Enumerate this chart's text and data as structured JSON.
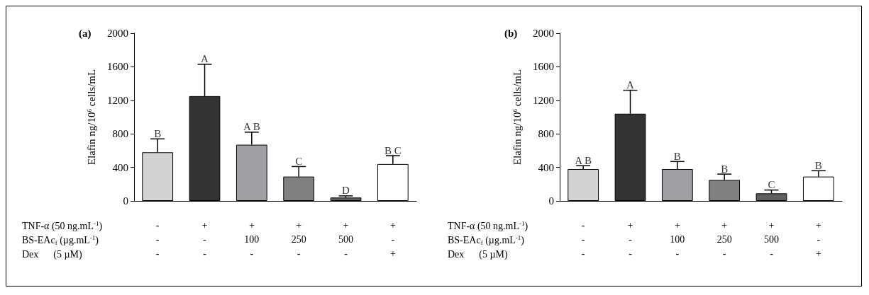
{
  "chart_data": [
    {
      "type": "bar",
      "title": "(a)",
      "ylabel": "Elafin ng/10$^{6}$ cells/mL",
      "categories": [
        "-\n-\n-",
        "+\n-\n-",
        "+\n100\n-",
        "+\n250\n-",
        "+\n500\n-",
        "+\n-\n+"
      ],
      "values": [
        580,
        1250,
        670,
        290,
        40,
        440
      ],
      "errors": [
        [
          580,
          740
        ],
        [
          1250,
          1630
        ],
        [
          670,
          820
        ],
        [
          290,
          410
        ],
        [
          40,
          60
        ],
        [
          440,
          540
        ]
      ],
      "colors": [
        "#d3d3d3",
        "#333333",
        "#a0a0a4",
        "#808080",
        "#606060",
        "#ffffff"
      ],
      "ylim": [
        0,
        2000
      ],
      "yticks": [
        0,
        400,
        800,
        1200,
        1600,
        2000
      ],
      "grid": false,
      "annotations": [
        "TNF-α (50 ng.mL$^{-1}$)",
        "BS-EAc$_{f}$ (µg.mL$^{-1}$)",
        "Dex      (5 µM)",
        "B",
        "A",
        "A B",
        "C",
        "D",
        "B C"
      ]
    },
    {
      "type": "bar",
      "title": "(b)",
      "ylabel": "Elafin ng/10$^{6}$ cells/mL",
      "categories": [
        "-\n-\n-",
        "+\n-\n-",
        "+\n100\n-",
        "+\n250\n-",
        "+\n500\n-",
        "+\n-\n+"
      ],
      "values": [
        380,
        1040,
        380,
        250,
        90,
        290
      ],
      "errors": [
        [
          380,
          420
        ],
        [
          1040,
          1320
        ],
        [
          380,
          470
        ],
        [
          250,
          320
        ],
        [
          90,
          130
        ],
        [
          290,
          360
        ]
      ],
      "colors": [
        "#d3d3d3",
        "#333333",
        "#a0a0a4",
        "#808080",
        "#606060",
        "#ffffff"
      ],
      "ylim": [
        0,
        2000
      ],
      "yticks": [
        0,
        400,
        800,
        1200,
        1600,
        2000
      ],
      "grid": false,
      "annotations": [
        "TNF-α (50 ng.mL$^{-1}$)",
        "BS-EAc$_{f}$ (µg.mL$^{-1}$)",
        "Dex      (5 µM)",
        "A B",
        "A",
        "B",
        "B",
        "C",
        "B"
      ]
    }
  ]
}
